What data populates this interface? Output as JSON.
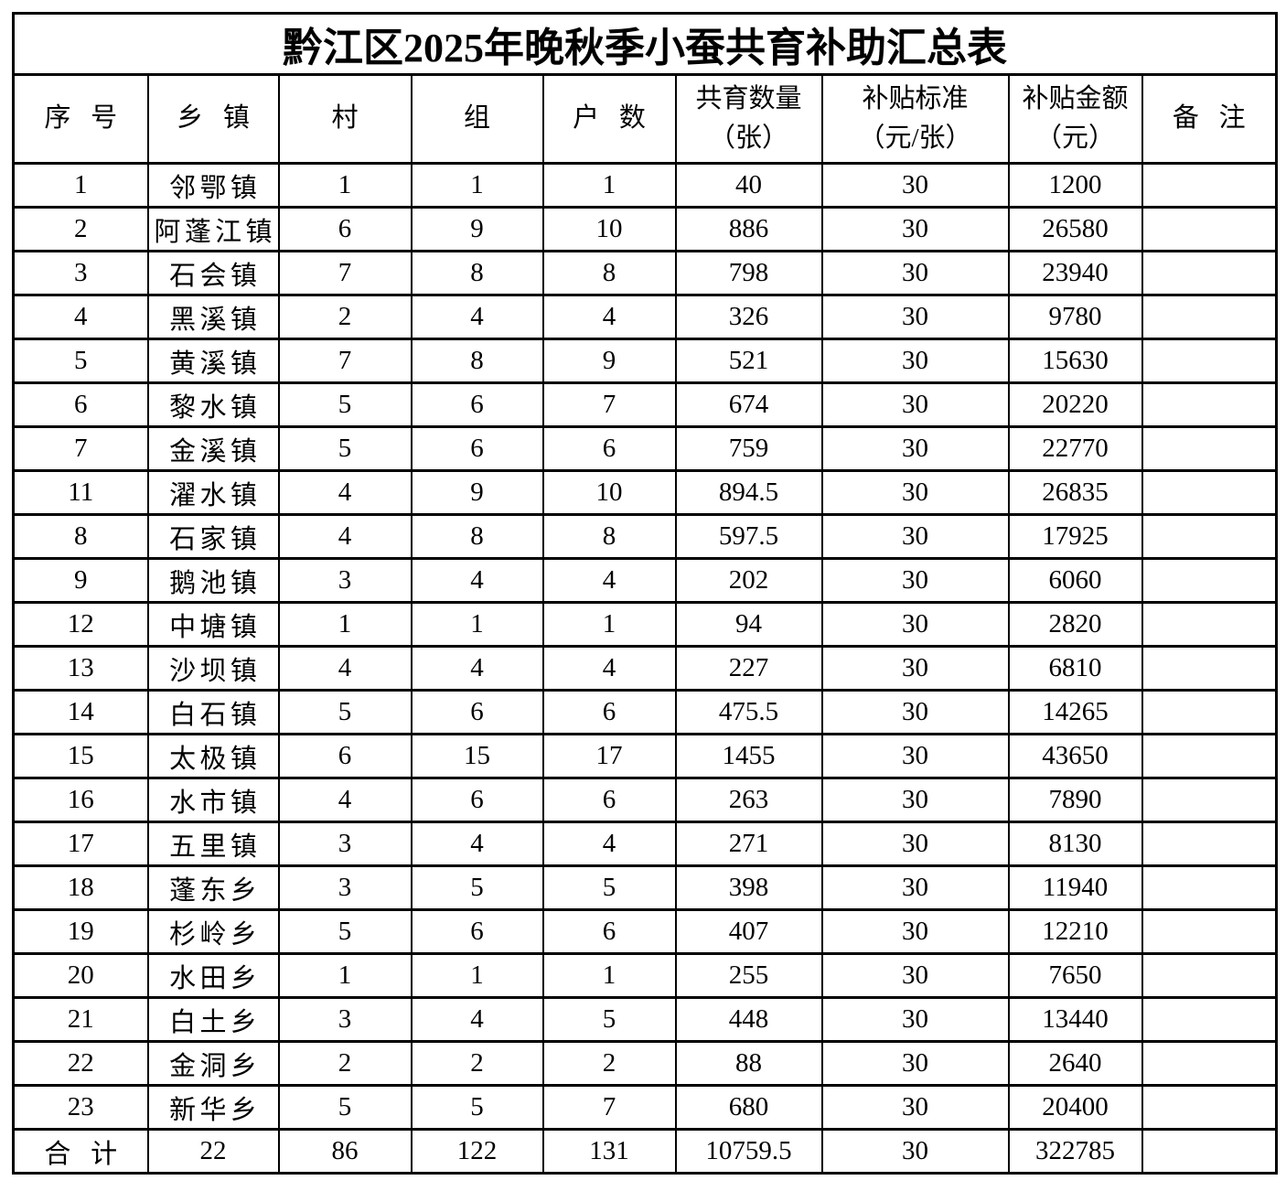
{
  "page_title": "黔江区2025年晚秋季小蚕共育补助汇总表",
  "colors": {
    "border": "#000000",
    "background": "#ffffff",
    "text": "#000000"
  },
  "table": {
    "headers": [
      "序 号",
      "乡 镇",
      "村",
      "组",
      "户 数",
      "共育数量\n（张）",
      "补贴标准\n（元/张）",
      "补贴金额\n（元）",
      "备 注"
    ],
    "rows": [
      [
        "1",
        "邻鄂镇",
        "1",
        "1",
        "1",
        "40",
        "30",
        "1200",
        ""
      ],
      [
        "2",
        "阿蓬江镇",
        "6",
        "9",
        "10",
        "886",
        "30",
        "26580",
        ""
      ],
      [
        "3",
        "石会镇",
        "7",
        "8",
        "8",
        "798",
        "30",
        "23940",
        ""
      ],
      [
        "4",
        "黑溪镇",
        "2",
        "4",
        "4",
        "326",
        "30",
        "9780",
        ""
      ],
      [
        "5",
        "黄溪镇",
        "7",
        "8",
        "9",
        "521",
        "30",
        "15630",
        ""
      ],
      [
        "6",
        "黎水镇",
        "5",
        "6",
        "7",
        "674",
        "30",
        "20220",
        ""
      ],
      [
        "7",
        "金溪镇",
        "5",
        "6",
        "6",
        "759",
        "30",
        "22770",
        ""
      ],
      [
        "11",
        "濯水镇",
        "4",
        "9",
        "10",
        "894.5",
        "30",
        "26835",
        ""
      ],
      [
        "8",
        "石家镇",
        "4",
        "8",
        "8",
        "597.5",
        "30",
        "17925",
        ""
      ],
      [
        "9",
        "鹅池镇",
        "3",
        "4",
        "4",
        "202",
        "30",
        "6060",
        ""
      ],
      [
        "12",
        "中塘镇",
        "1",
        "1",
        "1",
        "94",
        "30",
        "2820",
        ""
      ],
      [
        "13",
        "沙坝镇",
        "4",
        "4",
        "4",
        "227",
        "30",
        "6810",
        ""
      ],
      [
        "14",
        "白石镇",
        "5",
        "6",
        "6",
        "475.5",
        "30",
        "14265",
        ""
      ],
      [
        "15",
        "太极镇",
        "6",
        "15",
        "17",
        "1455",
        "30",
        "43650",
        ""
      ],
      [
        "16",
        "水市镇",
        "4",
        "6",
        "6",
        "263",
        "30",
        "7890",
        ""
      ],
      [
        "17",
        "五里镇",
        "3",
        "4",
        "4",
        "271",
        "30",
        "8130",
        ""
      ],
      [
        "18",
        "蓬东乡",
        "3",
        "5",
        "5",
        "398",
        "30",
        "11940",
        ""
      ],
      [
        "19",
        "杉岭乡",
        "5",
        "6",
        "6",
        "407",
        "30",
        "12210",
        ""
      ],
      [
        "20",
        "水田乡",
        "1",
        "1",
        "1",
        "255",
        "30",
        "7650",
        ""
      ],
      [
        "21",
        "白土乡",
        "3",
        "4",
        "5",
        "448",
        "30",
        "13440",
        ""
      ],
      [
        "22",
        "金洞乡",
        "2",
        "2",
        "2",
        "88",
        "30",
        "2640",
        ""
      ],
      [
        "23",
        "新华乡",
        "5",
        "5",
        "7",
        "680",
        "30",
        "20400",
        ""
      ]
    ],
    "total_row": [
      "合 计",
      "22",
      "86",
      "122",
      "131",
      "10759.5",
      "30",
      "322785",
      ""
    ]
  }
}
